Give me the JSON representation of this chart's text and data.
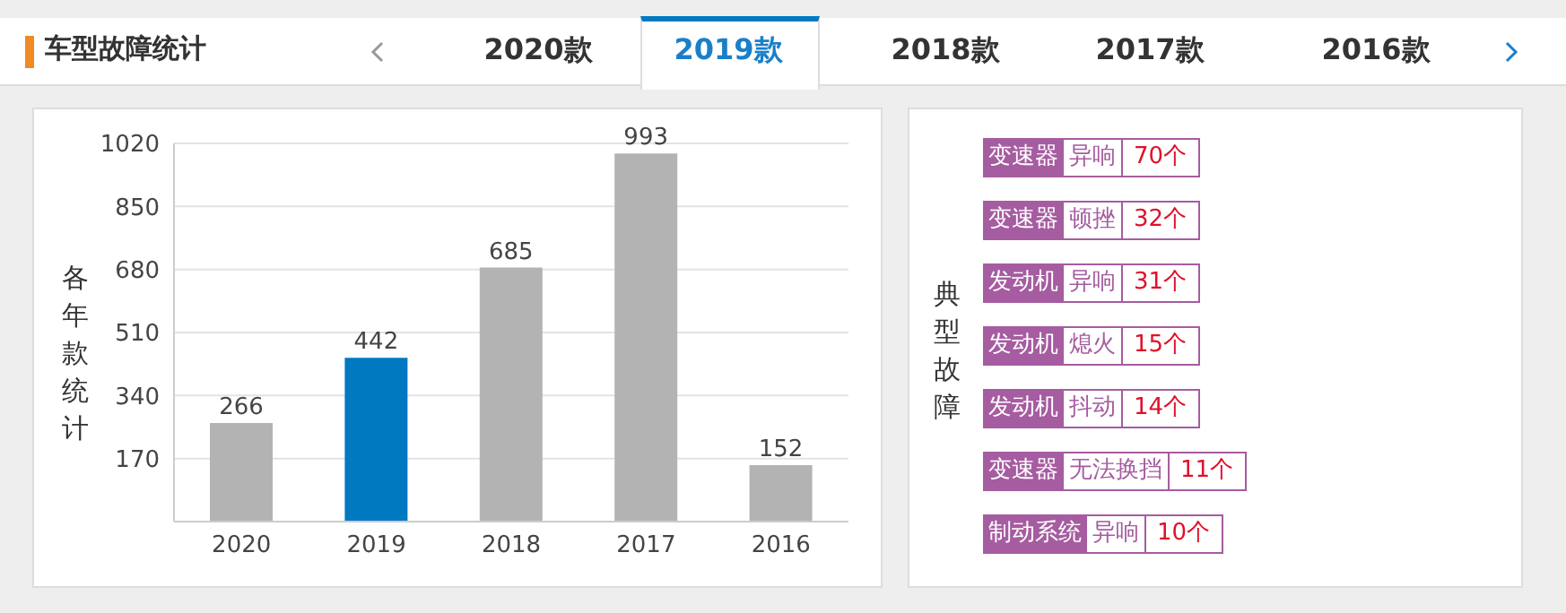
{
  "chart_data": [
    {
      "type": "bar",
      "title": "车型故障统计",
      "ylabel": "各年款统计",
      "annotations": [
        "2020款",
        "2019款",
        "2018款",
        "2017款",
        "2016款"
      ],
      "categories": [
        "2020",
        "2019",
        "2018",
        "2017",
        "2016"
      ],
      "values": [
        266,
        442,
        685,
        993,
        152
      ],
      "colors": [
        "#b3b3b3",
        "#0079c1",
        "#b3b3b3",
        "#b3b3b3",
        "#b3b3b3"
      ],
      "ylim": [
        0,
        1020
      ],
      "yticks": [
        170,
        340,
        510,
        680,
        850,
        1020
      ],
      "grid": "y",
      "data_labels": true
    },
    {
      "type": "other",
      "title": "典型故障",
      "y_categories": [
        "变速器",
        "变速器",
        "发动机",
        "发动机",
        "发动机",
        "变速器",
        "制动系统"
      ],
      "categories": [
        "异响",
        "顿挫",
        "异响",
        "熄火",
        "抖动",
        "无法换挡",
        "异响"
      ],
      "values": [
        70,
        32,
        31,
        15,
        14,
        11,
        10
      ],
      "value_labels": [
        "70个",
        "32个",
        "31个",
        "15个",
        "14个",
        "11个",
        "10个"
      ]
    }
  ]
}
